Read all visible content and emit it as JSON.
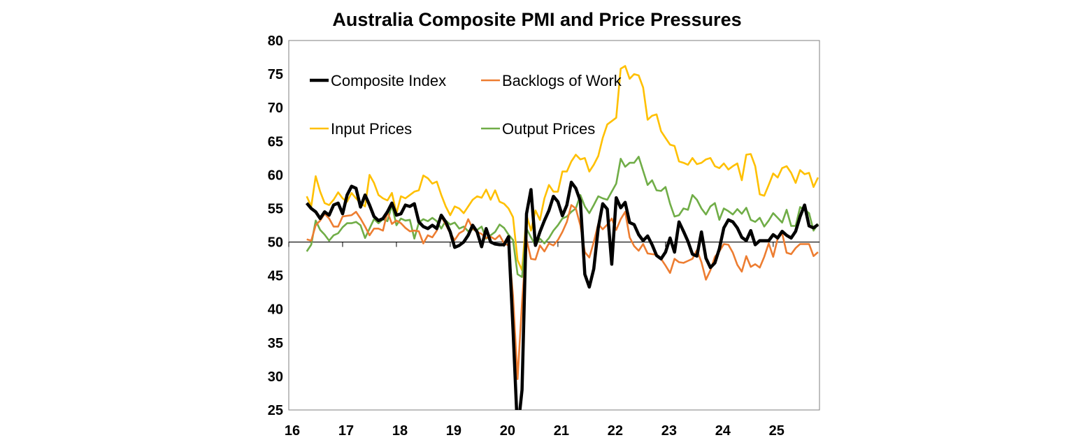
{
  "chart_data": {
    "type": "line",
    "title": "Australia Composite PMI and Price Pressures",
    "xlabel": "",
    "ylabel": "",
    "x_start_month": "2016-05",
    "x_frequency": "monthly",
    "xlim": [
      2016,
      2025.86
    ],
    "ylim": [
      25,
      80
    ],
    "x_tick_labels": [
      "16",
      "17",
      "18",
      "19",
      "20",
      "21",
      "22",
      "23",
      "24",
      "25"
    ],
    "x_tick_years": [
      2016,
      2017,
      2018,
      2019,
      2020,
      2021,
      2022,
      2023,
      2024,
      2025
    ],
    "y_ticks": [
      25,
      30,
      35,
      40,
      45,
      50,
      55,
      60,
      65,
      70,
      75,
      80
    ],
    "reference_line": 50,
    "grid": false,
    "legend_position": "top-left, inside plot",
    "series": [
      {
        "name": "Composite Index",
        "color": "#000000",
        "values": [
          55.8,
          55,
          54.5,
          53.5,
          54.5,
          54,
          55.5,
          55.8,
          54.2,
          57,
          58.3,
          58,
          55.2,
          57,
          55.5,
          53.8,
          53.2,
          53.5,
          54.5,
          55.8,
          54,
          54.2,
          55.5,
          55.3,
          55.7,
          53,
          52.3,
          52,
          52.5,
          52,
          54,
          53,
          51.5,
          49.2,
          49.5,
          50,
          51,
          52.5,
          51.5,
          49.3,
          52,
          50,
          49.7,
          49.6,
          49.6,
          50.8,
          37,
          21.7,
          28,
          54.2,
          57.8,
          49.5,
          51.5,
          53.2,
          54.7,
          56.8,
          56,
          53.9,
          55.5,
          58.9,
          58,
          56.1,
          45.2,
          43.3,
          46,
          52.1,
          55.7,
          54.9,
          46.7,
          56.6,
          55.1,
          55.9,
          52.9,
          52.6,
          51.1,
          50.2,
          50.9,
          49.6,
          48,
          47.5,
          48.5,
          50.6,
          48.5,
          53,
          51.6,
          50.1,
          48.2,
          47.9,
          51.5,
          47.6,
          46.2,
          46.9,
          49,
          52.1,
          53.3,
          53,
          52.1,
          50.7,
          50.2,
          51.7,
          49.6,
          50.2,
          50.2,
          50.2,
          51.1,
          50.6,
          51.6,
          51,
          50.6,
          51.6,
          53.8,
          55.5,
          52.4,
          52.1,
          52.6
        ]
      },
      {
        "name": "Backlogs of Work",
        "color": "#ED7D31",
        "values": [
          50.4,
          50.2,
          52.5,
          53.2,
          54.2,
          53.5,
          52.3,
          52.3,
          53.8,
          53.9,
          54,
          54.5,
          53.5,
          52.3,
          51,
          52,
          52,
          51.7,
          54.5,
          52.7,
          53.2,
          52.8,
          52.1,
          51.6,
          51.7,
          51.6,
          49.8,
          51,
          50.7,
          51.7,
          53.8,
          52.6,
          51.3,
          50.3,
          51.3,
          51.7,
          53.4,
          52,
          51.5,
          51.2,
          50.6,
          50.8,
          50.4,
          51,
          49.8,
          49.5,
          42,
          29.6,
          41,
          50.4,
          47.5,
          47.4,
          49.5,
          48.6,
          49.8,
          49.5,
          50.3,
          51.5,
          53,
          55.5,
          55,
          52.5,
          48.5,
          47.7,
          50,
          52.7,
          51.9,
          52.6,
          53.5,
          51.8,
          53.4,
          54.5,
          50.7,
          49.4,
          48.7,
          49.7,
          48.3,
          48.2,
          48.1,
          47.5,
          46.5,
          45.4,
          47.5,
          47,
          46.9,
          47.2,
          47.5,
          48.8,
          47,
          44.4,
          45.8,
          47.8,
          48.6,
          49.7,
          49.6,
          48.4,
          46.6,
          45.6,
          47.9,
          46.3,
          46.7,
          46.2,
          47.8,
          49.8,
          47.8,
          50.5,
          51.3,
          48.4,
          48.2,
          49.1,
          49.7,
          49.7,
          49.7,
          47.9,
          48.5
        ]
      },
      {
        "name": "Input Prices",
        "color": "#FFC000",
        "values": [
          56.8,
          55.3,
          59.8,
          57.5,
          55.8,
          55.5,
          56.3,
          57.4,
          56.5,
          56,
          57.3,
          56.5,
          55.8,
          55.3,
          60,
          58.8,
          57,
          56.5,
          56.2,
          57.3,
          54.3,
          56.8,
          56.5,
          57,
          57.5,
          57.7,
          59.9,
          59.5,
          58.7,
          59,
          57,
          55.3,
          54,
          55.3,
          55,
          54.3,
          55.3,
          56.3,
          56.8,
          56.6,
          57.8,
          56.3,
          57.7,
          56,
          55.7,
          55,
          53.7,
          47.3,
          45.8,
          54,
          51.7,
          54.7,
          53.3,
          56.5,
          58.5,
          57.5,
          57.5,
          60.5,
          60.5,
          62,
          63,
          62.3,
          62.5,
          60.5,
          61.5,
          62.8,
          65.5,
          67.5,
          68,
          68.5,
          75.8,
          76.2,
          74.3,
          75,
          74.8,
          73,
          68.2,
          68.8,
          69,
          66.5,
          65.5,
          64.5,
          64.3,
          62,
          61.8,
          61.5,
          62.5,
          61.6,
          61.8,
          62.3,
          62.5,
          61.3,
          61,
          61.7,
          60.8,
          61.3,
          61.7,
          59.2,
          63,
          63.1,
          61.3,
          57.1,
          56.9,
          58.5,
          60.2,
          59.6,
          61,
          61.3,
          60.3,
          58.8,
          60.7,
          60.1,
          60.3,
          58.2,
          59.6
        ]
      },
      {
        "name": "Output Prices",
        "color": "#70AD47",
        "values": [
          48.6,
          49.6,
          53.2,
          51.8,
          51.1,
          50.2,
          51,
          51.3,
          52.2,
          52.8,
          52.8,
          53,
          52.5,
          50.6,
          52,
          53.4,
          52.8,
          53.4,
          53.1,
          55.5,
          52.5,
          53.5,
          53.2,
          53.3,
          50.5,
          52.9,
          53.4,
          53.1,
          53.6,
          53.1,
          52,
          53.2,
          52.6,
          52.9,
          52,
          52.3,
          51.6,
          51.9,
          51.8,
          52.3,
          50.5,
          51,
          51.5,
          52.6,
          52.1,
          51.1,
          50.3,
          45.2,
          44.8,
          52,
          50.7,
          49.5,
          50.5,
          49.8,
          50.6,
          51.7,
          52.5,
          53.5,
          53.8,
          54.5,
          55,
          57,
          55.3,
          54.3,
          55.5,
          56.8,
          56.5,
          56.3,
          57.5,
          58.7,
          62.4,
          61.2,
          61.8,
          61.8,
          62.7,
          60.6,
          58.5,
          59.2,
          57.7,
          57.6,
          58.2,
          55.7,
          53.8,
          54,
          55,
          54.8,
          57,
          56.3,
          55,
          54.1,
          55.3,
          55.8,
          53.3,
          55,
          54.6,
          54.1,
          54.9,
          54.2,
          55.1,
          53.3,
          53,
          53.6,
          52.3,
          53.2,
          54.3,
          53.6,
          52.9,
          54.8,
          52.4,
          52.4,
          55.2,
          54.8,
          54.3,
          51.7,
          52.7
        ]
      }
    ]
  }
}
